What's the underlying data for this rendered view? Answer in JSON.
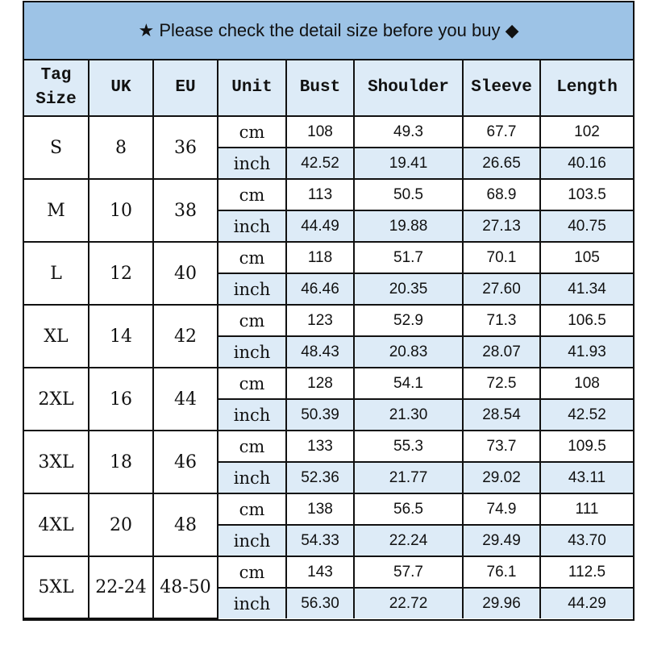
{
  "title": "★ Please check the detail size before you buy ◆",
  "headers": [
    "Tag Size",
    "UK",
    "EU",
    "Unit",
    "Bust",
    "Shoulder",
    "Sleeve",
    "Length"
  ],
  "units": {
    "cm": "cm",
    "inch": "inch"
  },
  "rows": [
    {
      "tag": "S",
      "uk": "8",
      "eu": "36",
      "cm": [
        "108",
        "49.3",
        "67.7",
        "102"
      ],
      "inch": [
        "42.52",
        "19.41",
        "26.65",
        "40.16"
      ]
    },
    {
      "tag": "M",
      "uk": "10",
      "eu": "38",
      "cm": [
        "113",
        "50.5",
        "68.9",
        "103.5"
      ],
      "inch": [
        "44.49",
        "19.88",
        "27.13",
        "40.75"
      ]
    },
    {
      "tag": "L",
      "uk": "12",
      "eu": "40",
      "cm": [
        "118",
        "51.7",
        "70.1",
        "105"
      ],
      "inch": [
        "46.46",
        "20.35",
        "27.60",
        "41.34"
      ]
    },
    {
      "tag": "XL",
      "uk": "14",
      "eu": "42",
      "cm": [
        "123",
        "52.9",
        "71.3",
        "106.5"
      ],
      "inch": [
        "48.43",
        "20.83",
        "28.07",
        "41.93"
      ]
    },
    {
      "tag": "2XL",
      "uk": "16",
      "eu": "44",
      "cm": [
        "128",
        "54.1",
        "72.5",
        "108"
      ],
      "inch": [
        "50.39",
        "21.30",
        "28.54",
        "42.52"
      ]
    },
    {
      "tag": "3XL",
      "uk": "18",
      "eu": "46",
      "cm": [
        "133",
        "55.3",
        "73.7",
        "109.5"
      ],
      "inch": [
        "52.36",
        "21.77",
        "29.02",
        "43.11"
      ]
    },
    {
      "tag": "4XL",
      "uk": "20",
      "eu": "48",
      "cm": [
        "138",
        "56.5",
        "74.9",
        "111"
      ],
      "inch": [
        "54.33",
        "22.24",
        "29.49",
        "43.70"
      ]
    },
    {
      "tag": "5XL",
      "uk": "22-24",
      "eu": "48-50",
      "cm": [
        "143",
        "57.7",
        "76.1",
        "112.5"
      ],
      "inch": [
        "56.30",
        "22.72",
        "29.96",
        "44.29"
      ]
    }
  ]
}
